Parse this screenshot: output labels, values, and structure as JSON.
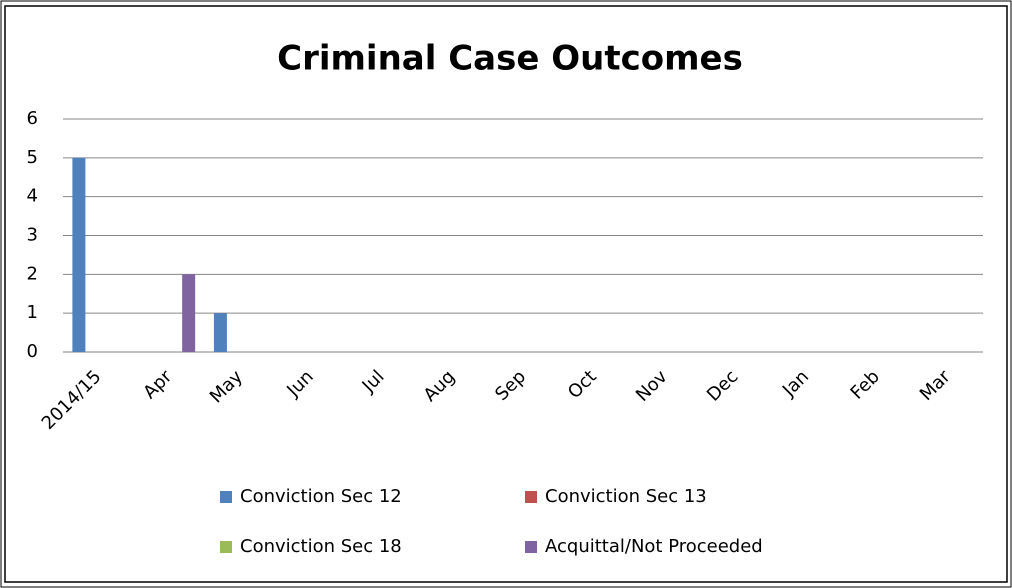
{
  "chart_data": {
    "type": "bar",
    "title": "Criminal Case Outcomes",
    "categories": [
      "2014/15",
      "Apr",
      "May",
      "Jun",
      "Jul",
      "Aug",
      "Sep",
      "Oct",
      "Nov",
      "Dec",
      "Jan",
      "Feb",
      "Mar"
    ],
    "series": [
      {
        "name": "Conviction Sec 12",
        "color": "#4f81bd",
        "values": [
          5,
          0,
          1,
          0,
          0,
          0,
          0,
          0,
          0,
          0,
          0,
          0,
          0
        ]
      },
      {
        "name": "Conviction Sec 13",
        "color": "#c0504d",
        "values": [
          0,
          0,
          0,
          0,
          0,
          0,
          0,
          0,
          0,
          0,
          0,
          0,
          0
        ]
      },
      {
        "name": "Conviction Sec 18",
        "color": "#9bbb59",
        "values": [
          0,
          0,
          0,
          0,
          0,
          0,
          0,
          0,
          0,
          0,
          0,
          0,
          0
        ]
      },
      {
        "name": "Acquittal/Not Proceeded",
        "color": "#8064a2",
        "values": [
          0,
          2,
          0,
          0,
          0,
          0,
          0,
          0,
          0,
          0,
          0,
          0,
          0
        ]
      }
    ],
    "ylim": [
      0,
      6
    ],
    "yticks": [
      0,
      1,
      2,
      3,
      4,
      5,
      6
    ],
    "grid": true,
    "legend": "bottom"
  }
}
